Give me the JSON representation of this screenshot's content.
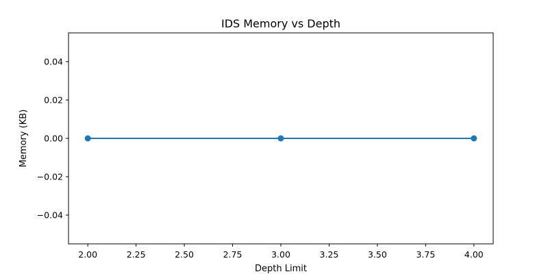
{
  "chart_data": {
    "type": "line",
    "title": "IDS Memory vs Depth",
    "xlabel": "Depth Limit",
    "ylabel": "Memory (KB)",
    "xlim": [
      1.9,
      4.1
    ],
    "ylim": [
      -0.055,
      0.055
    ],
    "x_ticks": [
      2.0,
      2.25,
      2.5,
      2.75,
      3.0,
      3.25,
      3.5,
      3.75,
      4.0
    ],
    "x_tick_labels": [
      "2.00",
      "2.25",
      "2.50",
      "2.75",
      "3.00",
      "3.25",
      "3.50",
      "3.75",
      "4.00"
    ],
    "y_ticks": [
      -0.04,
      -0.02,
      0.0,
      0.02,
      0.04
    ],
    "y_tick_labels": [
      "−0.04",
      "−0.02",
      "0.00",
      "0.02",
      "0.04"
    ],
    "grid": false,
    "legend": null,
    "series": [
      {
        "x": [
          2,
          3,
          4
        ],
        "values": [
          0.0,
          0.0,
          0.0
        ],
        "color": "#1f77b4",
        "marker": "circle"
      }
    ]
  }
}
